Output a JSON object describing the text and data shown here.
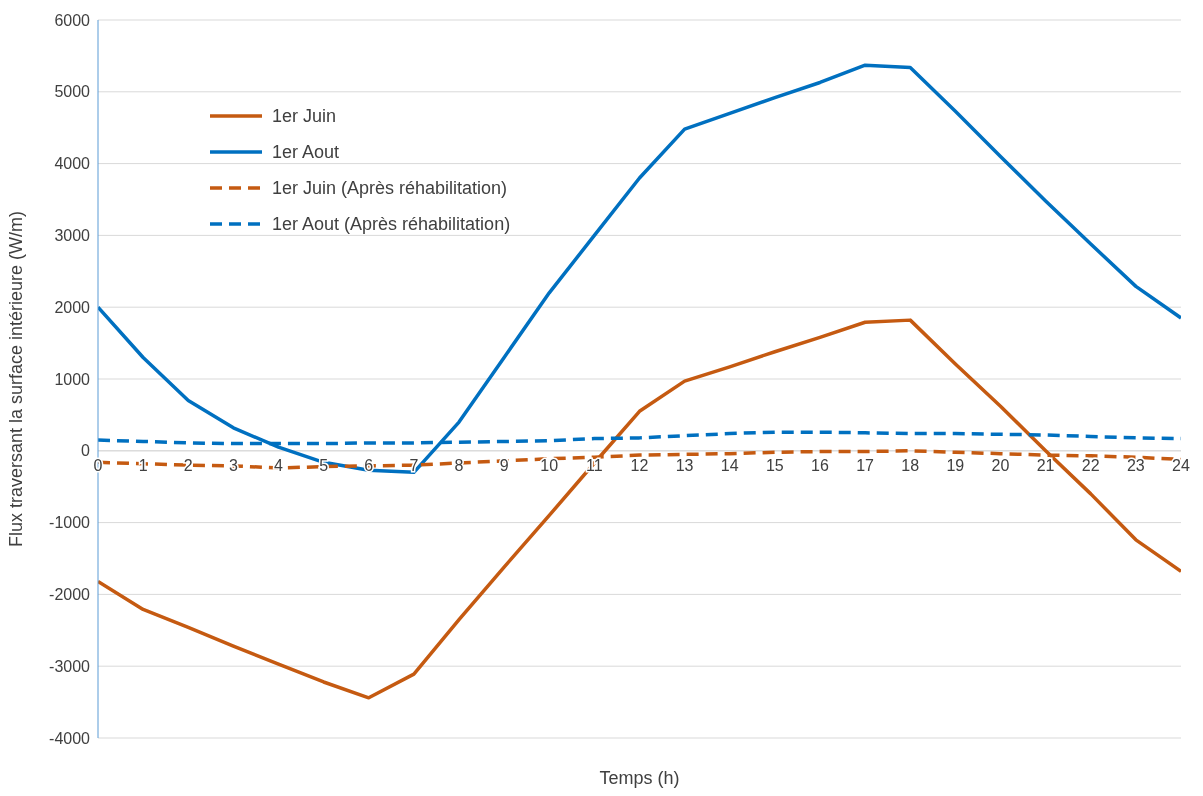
{
  "chart_data": {
    "type": "line",
    "xlabel": "Temps (h)",
    "ylabel": "Flux traversant la surface intérieure (W/m)",
    "x": [
      0,
      1,
      2,
      3,
      4,
      5,
      6,
      7,
      8,
      9,
      10,
      11,
      12,
      13,
      14,
      15,
      16,
      17,
      18,
      19,
      20,
      21,
      22,
      23,
      24
    ],
    "xlim": [
      0,
      24
    ],
    "xticks": [
      0,
      1,
      2,
      3,
      4,
      5,
      6,
      7,
      8,
      9,
      10,
      11,
      12,
      13,
      14,
      15,
      16,
      17,
      18,
      19,
      20,
      21,
      22,
      23,
      24
    ],
    "ylim": [
      -4000,
      6000
    ],
    "yticks": [
      -4000,
      -3000,
      -2000,
      -1000,
      0,
      1000,
      2000,
      3000,
      4000,
      5000,
      6000
    ],
    "grid": "y",
    "legend": "top left",
    "marker": "none",
    "series": [
      {
        "name": "1er Juin",
        "color": "#c55a11",
        "line_style": "solid",
        "values": [
          -1820,
          -2210,
          -2460,
          -2720,
          -2970,
          -3220,
          -3440,
          -3110,
          -2350,
          -1620,
          -900,
          -170,
          550,
          970,
          1170,
          1380,
          1580,
          1790,
          1820,
          1210,
          620,
          0,
          -600,
          -1240,
          -1680
        ]
      },
      {
        "name": "1er Aout",
        "color": "#0070c0",
        "line_style": "solid",
        "values": [
          2000,
          1300,
          700,
          320,
          50,
          -160,
          -270,
          -300,
          400,
          1300,
          2200,
          3000,
          3800,
          4480,
          4700,
          4920,
          5130,
          5370,
          5340,
          4730,
          4100,
          3480,
          2880,
          2290,
          1850
        ]
      },
      {
        "name": "1er Juin (Après réhabilitation)",
        "color": "#c55a11",
        "line_style": "dashed",
        "values": [
          -160,
          -180,
          -200,
          -210,
          -240,
          -220,
          -210,
          -200,
          -170,
          -140,
          -110,
          -90,
          -60,
          -50,
          -40,
          -20,
          -10,
          -10,
          0,
          -20,
          -40,
          -60,
          -70,
          -90,
          -120
        ]
      },
      {
        "name": "1er Aout (Après réhabilitation)",
        "color": "#0070c0",
        "line_style": "dashed",
        "values": [
          150,
          130,
          110,
          100,
          100,
          100,
          110,
          110,
          120,
          130,
          140,
          170,
          180,
          210,
          240,
          260,
          260,
          250,
          240,
          240,
          230,
          220,
          200,
          180,
          170
        ]
      }
    ]
  }
}
